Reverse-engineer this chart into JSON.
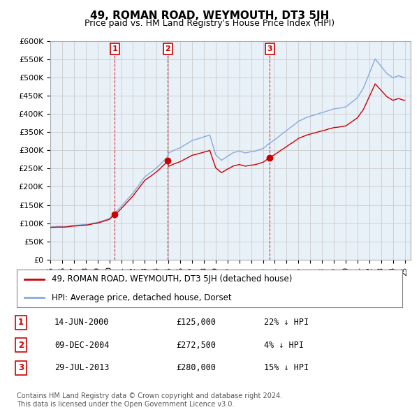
{
  "title": "49, ROMAN ROAD, WEYMOUTH, DT3 5JH",
  "subtitle": "Price paid vs. HM Land Registry's House Price Index (HPI)",
  "ylabel_ticks": [
    "£0",
    "£50K",
    "£100K",
    "£150K",
    "£200K",
    "£250K",
    "£300K",
    "£350K",
    "£400K",
    "£450K",
    "£500K",
    "£550K",
    "£600K"
  ],
  "ylim": [
    0,
    600000
  ],
  "xlim_start": 1995.0,
  "xlim_end": 2025.5,
  "sale_color": "#cc0000",
  "hpi_color": "#88aadd",
  "hpi_fill_color": "#ddeeff",
  "sale_label": "49, ROMAN ROAD, WEYMOUTH, DT3 5JH (detached house)",
  "hpi_label": "HPI: Average price, detached house, Dorset",
  "transactions": [
    {
      "num": 1,
      "date": "14-JUN-2000",
      "price": 125000,
      "pct": "22%",
      "dir": "↓",
      "x": 2000.45
    },
    {
      "num": 2,
      "date": "09-DEC-2004",
      "price": 272500,
      "pct": "4%",
      "dir": "↓",
      "x": 2004.94
    },
    {
      "num": 3,
      "date": "29-JUL-2013",
      "price": 280000,
      "pct": "15%",
      "dir": "↓",
      "x": 2013.58
    }
  ],
  "footer": "Contains HM Land Registry data © Crown copyright and database right 2024.\nThis data is licensed under the Open Government Licence v3.0.",
  "background_color": "#ffffff",
  "plot_bg_color": "#e8f0f8",
  "grid_color": "#cccccc"
}
